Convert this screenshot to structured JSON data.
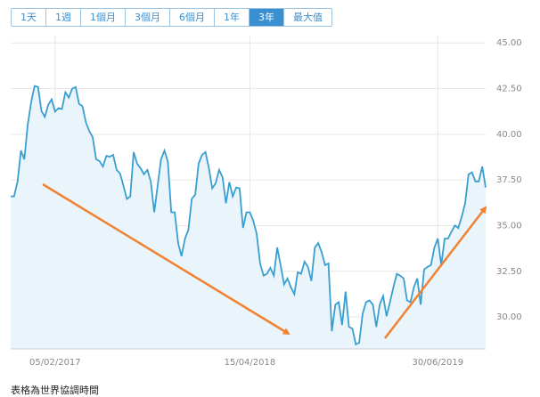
{
  "tabs": [
    "1天",
    "1週",
    "1個月",
    "3個月",
    "6個月",
    "1年",
    "3年",
    "最大值"
  ],
  "selected_tab": 6,
  "chart_data": {
    "type": "area",
    "color": "#3a9fd0",
    "fill": "#e9f5fb",
    "values": [
      36.6,
      36.6,
      37.42,
      39.11,
      38.63,
      40.56,
      41.77,
      42.64,
      42.59,
      41.28,
      40.95,
      41.62,
      41.91,
      41.24,
      41.43,
      41.38,
      42.3,
      42.01,
      42.49,
      42.59,
      41.67,
      41.53,
      40.66,
      40.17,
      39.84,
      38.63,
      38.53,
      38.24,
      38.82,
      38.77,
      38.87,
      38.05,
      37.86,
      37.18,
      36.46,
      36.6,
      39.02,
      38.39,
      38.15,
      37.81,
      38.05,
      37.42,
      35.73,
      37.18,
      38.63,
      39.11,
      38.48,
      35.73,
      35.73,
      34.05,
      33.32,
      34.29,
      34.77,
      36.46,
      36.7,
      38.39,
      38.87,
      39.02,
      38.15,
      37.04,
      37.33,
      38.05,
      37.66,
      36.22,
      37.38,
      36.6,
      37.09,
      37.04,
      34.87,
      35.73,
      35.73,
      35.25,
      34.53,
      32.93,
      32.26,
      32.36,
      32.69,
      32.26,
      33.8,
      32.84,
      31.78,
      32.11,
      31.63,
      31.25,
      32.45,
      32.36,
      33.03,
      32.74,
      31.97,
      33.8,
      34.05,
      33.56,
      32.84,
      32.93,
      29.22,
      30.67,
      30.81,
      29.56,
      31.39,
      29.46,
      29.36,
      28.5,
      28.59,
      30.18,
      30.81,
      30.91,
      30.67,
      29.46,
      30.67,
      31.15,
      30.04,
      30.81,
      31.63,
      32.36,
      32.26,
      32.11,
      30.91,
      30.81,
      31.63,
      32.11,
      30.67,
      32.6,
      32.74,
      32.84,
      33.8,
      34.29,
      32.84,
      34.29,
      34.29,
      34.67,
      35.01,
      34.87,
      35.49,
      36.22,
      37.81,
      37.91,
      37.42,
      37.42,
      38.24,
      37.09
    ],
    "xlim": [
      0,
      139
    ],
    "xticks": [
      {
        "value": 13,
        "label": "05/02/2017"
      },
      {
        "value": 70,
        "label": "15/04/2018"
      },
      {
        "value": 125,
        "label": "30/06/2019"
      }
    ],
    "ylim": [
      28.25,
      45.4
    ],
    "yticks": [
      {
        "value": 30,
        "label": "30.00"
      },
      {
        "value": 32.5,
        "label": "32.50"
      },
      {
        "value": 35,
        "label": "35.00"
      },
      {
        "value": 37.5,
        "label": "37.50"
      },
      {
        "value": 40,
        "label": "40.00"
      },
      {
        "value": 42.5,
        "label": "42.50"
      },
      {
        "value": 45,
        "label": "45.00"
      }
    ],
    "grid": true
  },
  "footnote": "表格為世界協調時間"
}
